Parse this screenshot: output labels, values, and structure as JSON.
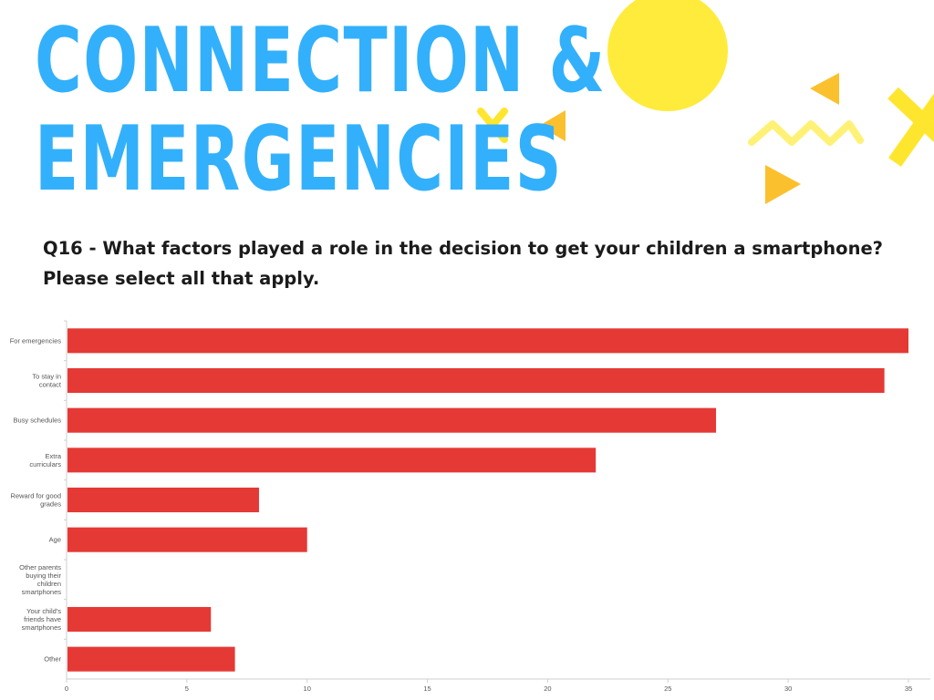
{
  "slide": {
    "title_line1": "CONNECTION &",
    "title_line2": "EMERGENCIES",
    "question_line1": "Q16 - What factors played a role in the decision to get your children a smartphone?",
    "question_line2": "Please select all that apply."
  },
  "colors": {
    "title": "#33b0fb",
    "bar": "#e53935",
    "sun": "#ffeb3b",
    "accent_yellow": "#ffe62e",
    "accent_orange": "#fbc02d"
  },
  "chart_data": {
    "type": "bar",
    "orientation": "horizontal",
    "categories": [
      [
        "For emergencies"
      ],
      [
        "To stay in",
        "contact"
      ],
      [
        "Busy schedules"
      ],
      [
        "Extra",
        "curriculars"
      ],
      [
        "Reward for good",
        "grades"
      ],
      [
        "Age"
      ],
      [
        "Other parents",
        "buying their",
        "children",
        "smartphones"
      ],
      [
        "Your child's",
        "friends have",
        "smartphones"
      ],
      [
        "Other"
      ]
    ],
    "values": [
      35,
      34,
      27,
      22,
      8,
      10,
      0,
      6,
      7
    ],
    "xlim": [
      0,
      35
    ],
    "xticks": [
      0,
      5,
      10,
      15,
      20,
      25,
      30,
      35
    ],
    "grid": false,
    "legend": "none"
  }
}
